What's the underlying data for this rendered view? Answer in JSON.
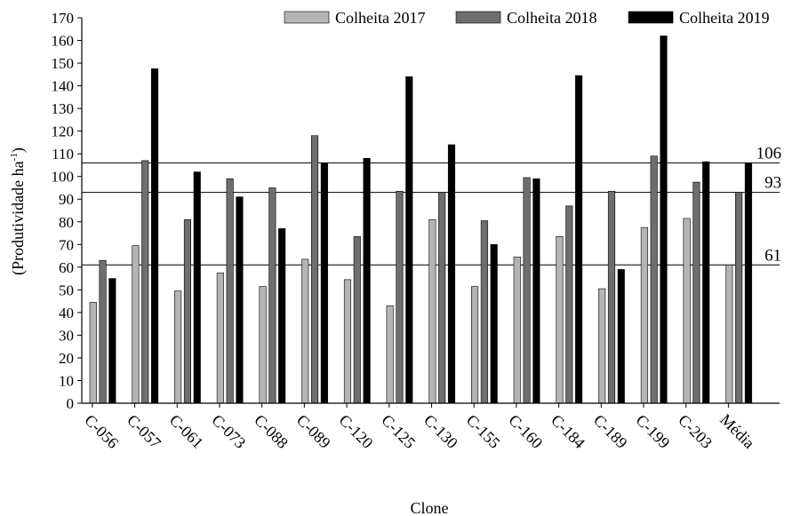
{
  "chart_data": {
    "type": "bar",
    "xlabel": "Clone",
    "ylabel": "(Produtividade ha",
    "ylabel_sup": "-1",
    "ylabel_close": ")",
    "ylim": [
      0,
      170
    ],
    "yticks": [
      0,
      10,
      20,
      30,
      40,
      50,
      60,
      70,
      80,
      90,
      100,
      110,
      120,
      130,
      140,
      150,
      160,
      170
    ],
    "categories": [
      "C-056",
      "C-057",
      "C-061",
      "C-073",
      "C-088",
      "C-089",
      "C-120",
      "C-125",
      "C-130",
      "C-155",
      "C-160",
      "C-184",
      "C-189",
      "C-199",
      "C-203",
      "Média"
    ],
    "series": [
      {
        "name": "Colheita 2017",
        "color": "#b4b4b4",
        "values": [
          44.5,
          69.5,
          49.5,
          57.5,
          51.5,
          63.5,
          54.5,
          43,
          81,
          51.5,
          64.5,
          73.5,
          50.5,
          77.5,
          81.5,
          61
        ]
      },
      {
        "name": "Colheita 2018",
        "color": "#6e6e6e",
        "values": [
          63,
          107,
          81,
          99,
          95,
          118,
          73.5,
          93.5,
          93,
          80.5,
          99.5,
          87,
          93.5,
          109,
          97.5,
          93
        ]
      },
      {
        "name": "Colheita 2019",
        "color": "#000000",
        "values": [
          55,
          147.5,
          102,
          91,
          77,
          106,
          108,
          144,
          114,
          70,
          99,
          144.5,
          59,
          162,
          106.5,
          106
        ]
      }
    ],
    "reference_lines": [
      {
        "value": 106,
        "label": "106"
      },
      {
        "value": 93,
        "label": "93"
      },
      {
        "value": 61,
        "label": "61"
      }
    ],
    "legend_position": "top-right",
    "grid": false
  }
}
